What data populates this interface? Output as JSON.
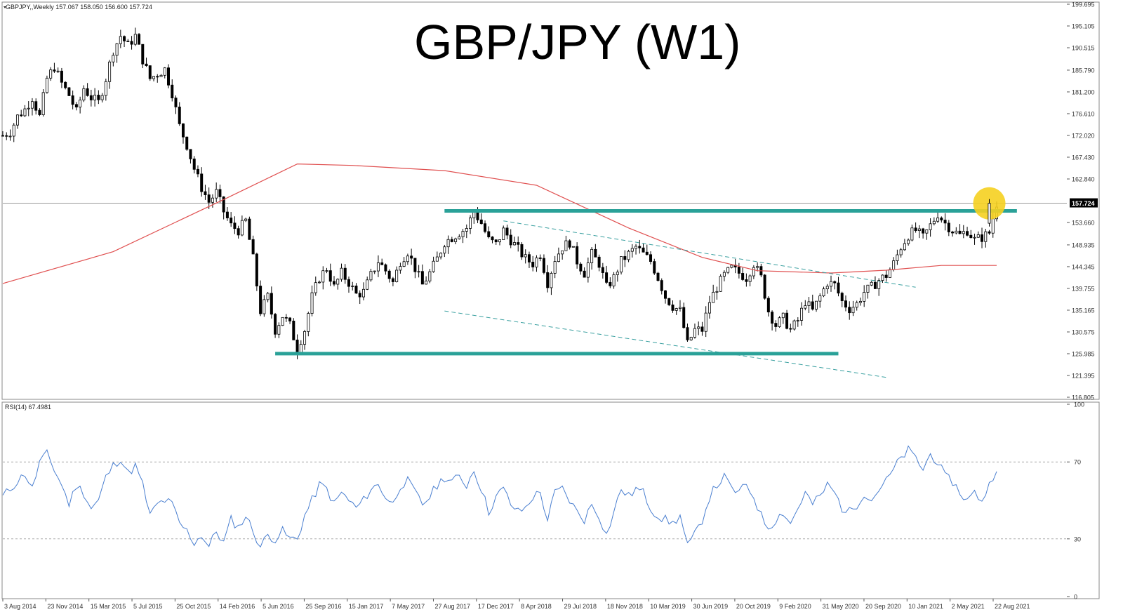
{
  "header": {
    "symbol_line": "GBPJPY,,Weekly 157.067 158.050 156.600 157.724",
    "title": "GBP/JPY (W1)"
  },
  "indicator": {
    "label": "RSI(14) 67.4981"
  },
  "colors": {
    "bull_candle": "#ffffff",
    "bear_candle": "#000000",
    "ma_line": "#e05050",
    "level_line": "#2aa198",
    "channel_line": "#3aa0a0",
    "rsi_line": "#4a7fd0",
    "highlight": "#f5d020",
    "price_marker_bg": "#000000"
  },
  "chart_data": [
    {
      "type": "candlestick",
      "title": "GBP/JPY (W1)",
      "timeframe": "Weekly",
      "ylim": [
        116.805,
        199.695
      ],
      "y_ticks": [
        "199.695",
        "195.105",
        "190.515",
        "185.790",
        "181.200",
        "176.610",
        "172.020",
        "167.430",
        "162.840",
        "157.724",
        "153.660",
        "148.935",
        "144.345",
        "139.755",
        "135.165",
        "130.575",
        "125.985",
        "121.395",
        "116.805"
      ],
      "x_ticks": [
        "3 Aug 2014",
        "23 Nov 2014",
        "15 Mar 2015",
        "5 Jul 2015",
        "25 Oct 2015",
        "14 Feb 2016",
        "5 Jun 2016",
        "25 Sep 2016",
        "15 Jan 2017",
        "7 May 2017",
        "27 Aug 2017",
        "17 Dec 2017",
        "8 Apr 2018",
        "29 Jul 2018",
        "18 Nov 2018",
        "10 Mar 2019",
        "30 Jun 2019",
        "20 Oct 2019",
        "9 Feb 2020",
        "31 May 2020",
        "20 Sep 2020",
        "10 Jan 2021",
        "2 May 2021",
        "22 Aug 2021"
      ],
      "last_price": "157.724",
      "close_path": [
        [
          0,
          172.0
        ],
        [
          4,
          172.8
        ],
        [
          8,
          176.0
        ],
        [
          12,
          177.5
        ],
        [
          16,
          180.0
        ],
        [
          20,
          176.0
        ],
        [
          24,
          184.0
        ],
        [
          28,
          186.5
        ],
        [
          32,
          183.0
        ],
        [
          36,
          180.5
        ],
        [
          40,
          177.0
        ],
        [
          44,
          182.0
        ],
        [
          48,
          180.0
        ],
        [
          52,
          179.0
        ],
        [
          56,
          184.0
        ],
        [
          60,
          190.0
        ],
        [
          64,
          193.0
        ],
        [
          68,
          191.0
        ],
        [
          72,
          193.0
        ],
        [
          76,
          188.0
        ],
        [
          80,
          184.0
        ],
        [
          84,
          185.0
        ],
        [
          88,
          186.0
        ],
        [
          92,
          181.0
        ],
        [
          96,
          174.0
        ],
        [
          100,
          170.0
        ],
        [
          104,
          165.0
        ],
        [
          108,
          161.0
        ],
        [
          112,
          158.0
        ],
        [
          116,
          160.0
        ],
        [
          120,
          156.0
        ],
        [
          124,
          153.0
        ],
        [
          128,
          152.0
        ],
        [
          132,
          154.0
        ],
        [
          136,
          146.0
        ],
        [
          140,
          135.0
        ],
        [
          144,
          138.0
        ],
        [
          148,
          131.0
        ],
        [
          152,
          134.0
        ],
        [
          156,
          132.0
        ],
        [
          160,
          127.0
        ],
        [
          164,
          131.0
        ],
        [
          168,
          138.0
        ],
        [
          172,
          142.0
        ],
        [
          176,
          144.0
        ],
        [
          180,
          140.0
        ],
        [
          184,
          143.0
        ],
        [
          188,
          141.0
        ],
        [
          192,
          138.5
        ],
        [
          196,
          139.0
        ],
        [
          200,
          142.5
        ],
        [
          204,
          145.5
        ],
        [
          208,
          143.5
        ],
        [
          212,
          141.0
        ],
        [
          216,
          145.5
        ],
        [
          220,
          147.5
        ],
        [
          224,
          144.0
        ],
        [
          228,
          140.5
        ],
        [
          232,
          143.0
        ],
        [
          236,
          146.0
        ],
        [
          240,
          149.5
        ],
        [
          244,
          150.5
        ],
        [
          248,
          151.5
        ],
        [
          252,
          152.5
        ],
        [
          256,
          156.0
        ],
        [
          260,
          153.5
        ],
        [
          264,
          150.0
        ],
        [
          268,
          149.0
        ],
        [
          272,
          152.0
        ],
        [
          276,
          150.0
        ],
        [
          280,
          148.0
        ],
        [
          284,
          146.0
        ],
        [
          288,
          145.0
        ],
        [
          292,
          147.0
        ],
        [
          296,
          141.0
        ],
        [
          300,
          146.0
        ],
        [
          304,
          148.5
        ],
        [
          308,
          149.5
        ],
        [
          312,
          145.5
        ],
        [
          316,
          143.0
        ],
        [
          320,
          147.0
        ],
        [
          324,
          145.0
        ],
        [
          328,
          140.0
        ],
        [
          332,
          142.0
        ],
        [
          336,
          145.5
        ],
        [
          340,
          147.0
        ],
        [
          344,
          148.5
        ],
        [
          348,
          147.0
        ],
        [
          352,
          145.5
        ],
        [
          356,
          142.0
        ],
        [
          360,
          138.0
        ],
        [
          364,
          136.0
        ],
        [
          368,
          135.0
        ],
        [
          372,
          128.0
        ],
        [
          376,
          131.0
        ],
        [
          380,
          131.0
        ],
        [
          384,
          137.0
        ],
        [
          388,
          140.0
        ],
        [
          392,
          142.5
        ],
        [
          396,
          144.0
        ],
        [
          400,
          143.0
        ],
        [
          404,
          142.0
        ],
        [
          408,
          145.0
        ],
        [
          412,
          142.0
        ],
        [
          416,
          135.0
        ],
        [
          420,
          132.0
        ],
        [
          424,
          133.5
        ],
        [
          428,
          131.0
        ],
        [
          432,
          133.0
        ],
        [
          436,
          137.0
        ],
        [
          440,
          135.0
        ],
        [
          444,
          138.0
        ],
        [
          448,
          141.0
        ],
        [
          452,
          140.5
        ],
        [
          456,
          137.0
        ],
        [
          460,
          135.5
        ],
        [
          464,
          136.5
        ],
        [
          468,
          139.0
        ],
        [
          472,
          140.0
        ],
        [
          476,
          141.5
        ],
        [
          480,
          142.5
        ],
        [
          484,
          145.0
        ],
        [
          488,
          148.5
        ],
        [
          492,
          151.0
        ],
        [
          496,
          152.0
        ],
        [
          500,
          150.5
        ],
        [
          504,
          153.0
        ],
        [
          508,
          155.5
        ],
        [
          512,
          153.5
        ],
        [
          516,
          152.0
        ],
        [
          520,
          151.0
        ],
        [
          524,
          152.0
        ],
        [
          528,
          150.0
        ],
        [
          532,
          150.5
        ],
        [
          536,
          151.5
        ],
        [
          540,
          157.7
        ]
      ],
      "moving_average": {
        "color": "#e05050",
        "points": [
          [
            0,
            140.8
          ],
          [
            60,
            147.5
          ],
          [
            120,
            158.5
          ],
          [
            160,
            166.0
          ],
          [
            190,
            165.7
          ],
          [
            240,
            164.6
          ],
          [
            290,
            161.5
          ],
          [
            340,
            152.5
          ],
          [
            380,
            146.3
          ],
          [
            410,
            143.5
          ],
          [
            450,
            143.0
          ],
          [
            480,
            143.6
          ],
          [
            510,
            144.6
          ],
          [
            540,
            144.6
          ]
        ]
      },
      "levels": [
        {
          "value": 156.1,
          "from": 240,
          "to": 551
        },
        {
          "value": 126.0,
          "from": 148,
          "to": 454
        }
      ],
      "channel_lines": [
        {
          "from": [
            272,
            154.0
          ],
          "to": [
            496,
            140.0
          ]
        },
        {
          "from": [
            240,
            135.0
          ],
          "to": [
            480,
            121.0
          ]
        }
      ],
      "highlight_index": 536,
      "highlight_price": 157.7
    },
    {
      "type": "line",
      "title": "RSI(14) 67.4981",
      "ylim": [
        0,
        100
      ],
      "y_ticks": [
        100,
        70,
        30,
        0
      ],
      "levels": [
        70,
        30
      ],
      "values": [
        [
          0,
          52
        ],
        [
          4,
          56
        ],
        [
          8,
          60
        ],
        [
          12,
          64
        ],
        [
          16,
          56
        ],
        [
          20,
          70
        ],
        [
          24,
          74
        ],
        [
          28,
          66
        ],
        [
          32,
          58
        ],
        [
          36,
          48
        ],
        [
          40,
          58
        ],
        [
          44,
          54
        ],
        [
          48,
          46
        ],
        [
          52,
          50
        ],
        [
          56,
          62
        ],
        [
          60,
          68
        ],
        [
          64,
          72
        ],
        [
          68,
          64
        ],
        [
          72,
          68
        ],
        [
          76,
          58
        ],
        [
          80,
          42
        ],
        [
          84,
          48
        ],
        [
          88,
          50
        ],
        [
          92,
          48
        ],
        [
          96,
          38
        ],
        [
          100,
          34
        ],
        [
          104,
          28
        ],
        [
          108,
          32
        ],
        [
          112,
          26
        ],
        [
          116,
          34
        ],
        [
          120,
          28
        ],
        [
          124,
          40
        ],
        [
          128,
          36
        ],
        [
          132,
          42
        ],
        [
          136,
          34
        ],
        [
          140,
          26
        ],
        [
          144,
          32
        ],
        [
          148,
          30
        ],
        [
          152,
          34
        ],
        [
          156,
          30
        ],
        [
          160,
          30
        ],
        [
          164,
          42
        ],
        [
          168,
          50
        ],
        [
          172,
          58
        ],
        [
          176,
          56
        ],
        [
          180,
          48
        ],
        [
          184,
          54
        ],
        [
          188,
          50
        ],
        [
          192,
          46
        ],
        [
          196,
          50
        ],
        [
          200,
          56
        ],
        [
          204,
          58
        ],
        [
          208,
          52
        ],
        [
          212,
          48
        ],
        [
          216,
          58
        ],
        [
          220,
          60
        ],
        [
          224,
          54
        ],
        [
          228,
          48
        ],
        [
          232,
          52
        ],
        [
          236,
          58
        ],
        [
          240,
          62
        ],
        [
          244,
          60
        ],
        [
          248,
          62
        ],
        [
          252,
          58
        ],
        [
          256,
          66
        ],
        [
          260,
          56
        ],
        [
          264,
          44
        ],
        [
          268,
          52
        ],
        [
          272,
          56
        ],
        [
          276,
          48
        ],
        [
          280,
          44
        ],
        [
          284,
          46
        ],
        [
          288,
          52
        ],
        [
          292,
          54
        ],
        [
          296,
          40
        ],
        [
          300,
          54
        ],
        [
          304,
          56
        ],
        [
          308,
          50
        ],
        [
          312,
          44
        ],
        [
          316,
          40
        ],
        [
          320,
          48
        ],
        [
          324,
          42
        ],
        [
          328,
          32
        ],
        [
          332,
          44
        ],
        [
          336,
          56
        ],
        [
          340,
          52
        ],
        [
          344,
          56
        ],
        [
          348,
          54
        ],
        [
          352,
          46
        ],
        [
          356,
          42
        ],
        [
          360,
          40
        ],
        [
          364,
          38
        ],
        [
          368,
          42
        ],
        [
          372,
          26
        ],
        [
          376,
          32
        ],
        [
          380,
          40
        ],
        [
          384,
          52
        ],
        [
          388,
          58
        ],
        [
          392,
          62
        ],
        [
          396,
          56
        ],
        [
          400,
          54
        ],
        [
          404,
          58
        ],
        [
          408,
          52
        ],
        [
          412,
          42
        ],
        [
          416,
          36
        ],
        [
          420,
          40
        ],
        [
          424,
          44
        ],
        [
          428,
          38
        ],
        [
          432,
          46
        ],
        [
          436,
          54
        ],
        [
          440,
          48
        ],
        [
          444,
          52
        ],
        [
          448,
          58
        ],
        [
          452,
          54
        ],
        [
          456,
          46
        ],
        [
          460,
          44
        ],
        [
          464,
          48
        ],
        [
          468,
          54
        ],
        [
          472,
          50
        ],
        [
          476,
          56
        ],
        [
          480,
          60
        ],
        [
          484,
          66
        ],
        [
          488,
          72
        ],
        [
          492,
          76
        ],
        [
          496,
          72
        ],
        [
          500,
          66
        ],
        [
          504,
          74
        ],
        [
          508,
          70
        ],
        [
          512,
          62
        ],
        [
          516,
          60
        ],
        [
          520,
          54
        ],
        [
          524,
          50
        ],
        [
          528,
          54
        ],
        [
          532,
          50
        ],
        [
          536,
          58
        ],
        [
          540,
          67.5
        ]
      ]
    }
  ]
}
